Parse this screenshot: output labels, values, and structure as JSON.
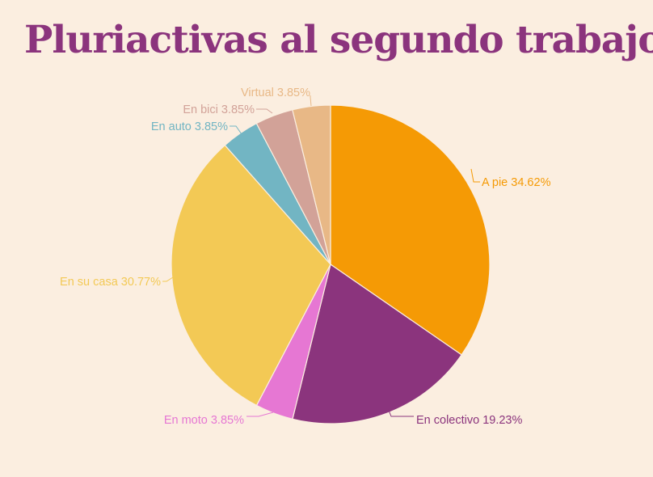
{
  "chart_data": {
    "type": "pie",
    "title": "Pluriactivas al segundo trabajo",
    "slices": [
      {
        "label": "A pie 34.62%",
        "name": "A pie",
        "value": 34.62,
        "color": "#f59a05"
      },
      {
        "label": "En colectivo 19.23%",
        "name": "En colectivo",
        "value": 19.23,
        "color": "#8b347d"
      },
      {
        "label": "En moto 3.85%",
        "name": "En moto",
        "value": 3.85,
        "color": "#e677d3"
      },
      {
        "label": "En su casa 30.77%",
        "name": "En su casa",
        "value": 30.77,
        "color": "#f3c955"
      },
      {
        "label": "En auto 3.85%",
        "name": "En auto",
        "value": 3.85,
        "color": "#72b5c3"
      },
      {
        "label": "En bici 3.85%",
        "name": "En bici",
        "value": 3.85,
        "color": "#d2a298"
      },
      {
        "label": "Virtual 3.85%",
        "name": "Virtual",
        "value": 3.85,
        "color": "#e8b886"
      }
    ],
    "start": "12 o'clock",
    "direction": "clockwise",
    "legend": "none"
  }
}
